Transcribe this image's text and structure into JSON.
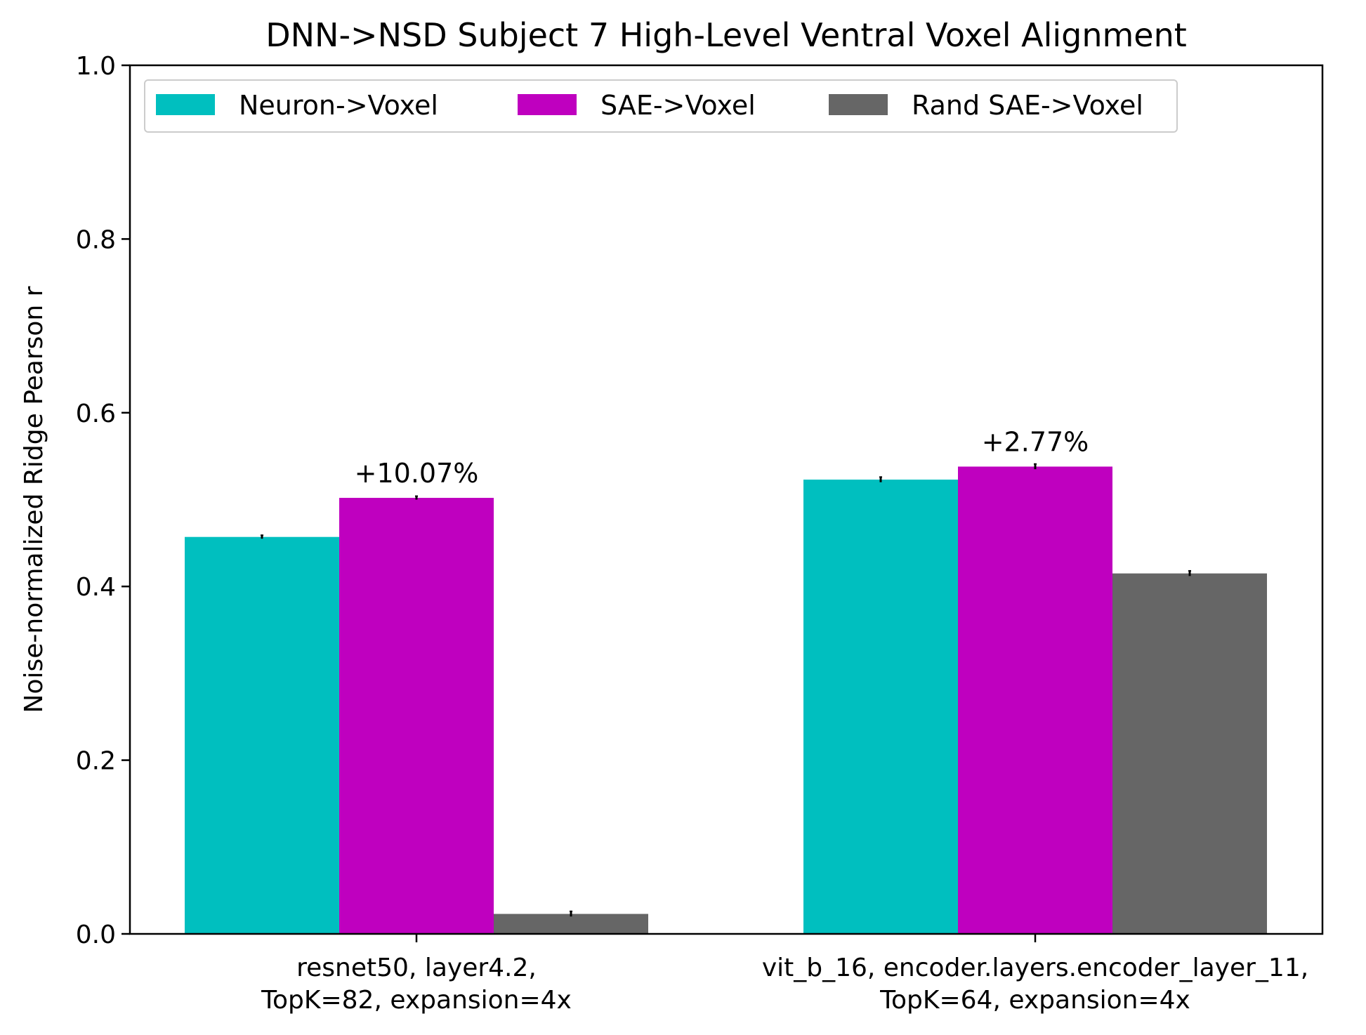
{
  "chart_data": {
    "type": "bar",
    "title": "DNN->NSD Subject 7 High-Level Ventral Voxel Alignment",
    "xlabel": "",
    "ylabel": "Noise-normalized Ridge Pearson r",
    "ylim": [
      0.0,
      1.0
    ],
    "yticks": [
      "0.0",
      "0.2",
      "0.4",
      "0.6",
      "0.8",
      "1.0"
    ],
    "grid": false,
    "legend_position": "top-left",
    "categories": [
      [
        "resnet50, layer4.2,",
        "TopK=82, expansion=4x"
      ],
      [
        "vit_b_16, encoder.layers.encoder_layer_11,",
        "TopK=64, expansion=4x"
      ]
    ],
    "series": [
      {
        "name": "Neuron->Voxel",
        "color": "#00bfbf",
        "values": [
          0.457,
          0.523
        ],
        "errors": [
          0.002,
          0.003
        ]
      },
      {
        "name": "SAE->Voxel",
        "color": "#bf00bf",
        "values": [
          0.502,
          0.538
        ],
        "errors": [
          0.002,
          0.003
        ]
      },
      {
        "name": "Rand SAE->Voxel",
        "color": "#666666",
        "values": [
          0.023,
          0.415
        ],
        "errors": [
          0.003,
          0.003
        ]
      }
    ],
    "annotations": [
      "+10.07%",
      "+2.77%"
    ]
  }
}
